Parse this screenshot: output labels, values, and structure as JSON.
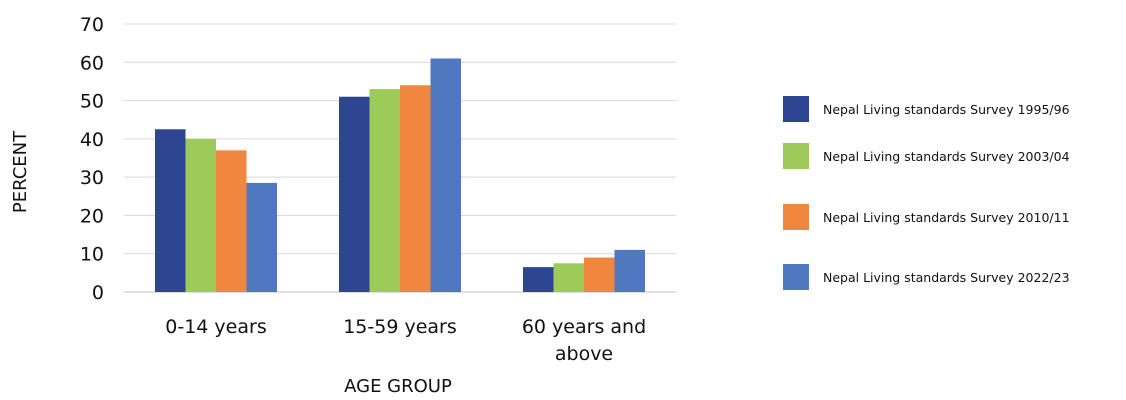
{
  "chart_data": {
    "type": "bar",
    "title": "",
    "xlabel": "AGE GROUP",
    "ylabel": "PERCENT",
    "ylim": [
      0,
      70
    ],
    "yticks": [
      0,
      10,
      20,
      30,
      40,
      50,
      60,
      70
    ],
    "grid": true,
    "legend_position": "right",
    "categories": [
      "0-14 years",
      "15-59 years",
      "60 years and above"
    ],
    "category_label_lines": [
      [
        "0-14 years"
      ],
      [
        "15-59 years"
      ],
      [
        "60 years and",
        "above"
      ]
    ],
    "series": [
      {
        "name": "Nepal Living standards Survey 1995/96",
        "color": "#2e4692",
        "values": [
          42.5,
          51.0,
          6.5
        ]
      },
      {
        "name": "Nepal Living standards Survey 2003/04",
        "color": "#9dcb5a",
        "values": [
          40.0,
          53.0,
          7.5
        ]
      },
      {
        "name": "Nepal Living standards Survey 2010/11",
        "color": "#f0873f",
        "values": [
          37.0,
          54.0,
          9.0
        ]
      },
      {
        "name": "Nepal Living standards Survey 2022/23",
        "color": "#4f78c0",
        "values": [
          28.5,
          61.0,
          11.0
        ]
      }
    ]
  }
}
